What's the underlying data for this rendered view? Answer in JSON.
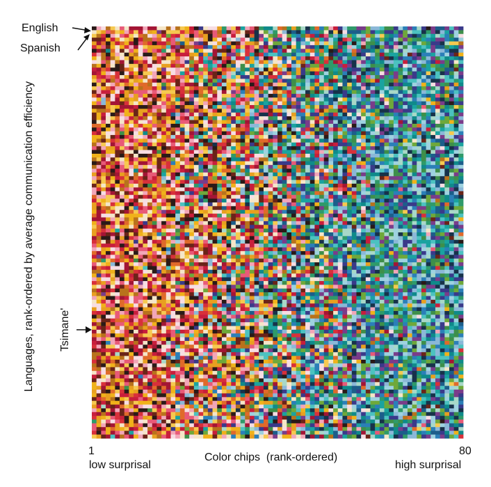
{
  "chart_data": {
    "type": "heatmap",
    "title": "",
    "xlabel": "Color chips  (rank-ordered)",
    "ylabel": "Languages, rank-ordered by average communication efficiency",
    "x_tick_labels": [
      "1",
      "80"
    ],
    "x_range": [
      1,
      80
    ],
    "x_low_label": "low surprisal",
    "x_high_label": "high surprisal",
    "n_columns": 80,
    "n_rows": 110,
    "annotations": [
      {
        "label": "English",
        "row": 1
      },
      {
        "label": "Spanish",
        "row": 2
      },
      {
        "label": "Tsimane'",
        "row": 73
      }
    ],
    "low_surprisal_palette": [
      "#f0b21a",
      "#e8a020",
      "#d8303a",
      "#c81e3c",
      "#e85a78",
      "#f2a6b8",
      "#f7dde3",
      "#2a1a18",
      "#6a2418",
      "#b8721c",
      "#f5e6c8",
      "#a31535",
      "#e06a2a",
      "#f6c950"
    ],
    "high_surprisal_palette": [
      "#0f8a8a",
      "#1aa3a0",
      "#2b7fb8",
      "#1c5e8a",
      "#4cc2c0",
      "#6fa83a",
      "#3e8f4a",
      "#9ed2e0",
      "#17324a",
      "#3a3a8a",
      "#7a3c8a",
      "#a8d8c8",
      "#2f9a6a",
      "#8bb8d8"
    ]
  }
}
